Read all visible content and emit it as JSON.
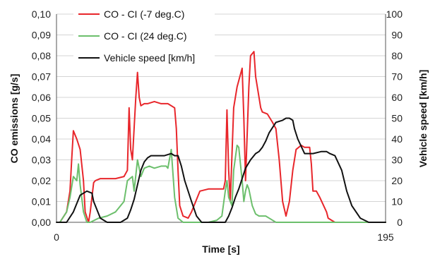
{
  "chart_data": {
    "type": "line",
    "xlabel": "Time [s]",
    "ylabel_left": "CO emissions [g/s]",
    "ylabel_right": "Vehicle speed [km/h]",
    "xlim": [
      0,
      195
    ],
    "x_ticks": [
      "0",
      "195"
    ],
    "ylim_left": [
      0,
      0.1
    ],
    "ylim_right": [
      0,
      100
    ],
    "y_ticks_left": [
      "0,00",
      "0,01",
      "0,02",
      "0,03",
      "0,04",
      "0,05",
      "0,06",
      "0,07",
      "0,08",
      "0,09",
      "0,10"
    ],
    "y_ticks_right": [
      "0",
      "10",
      "20",
      "30",
      "40",
      "50",
      "60",
      "70",
      "80",
      "90",
      "100"
    ],
    "grid": true,
    "legend_position": "top-left",
    "series": [
      {
        "name": "CO - CI (-7 deg.C)",
        "axis": "left",
        "color": "#e8262b",
        "x": [
          2,
          6,
          8,
          9,
          10,
          12,
          14,
          16,
          17,
          19,
          20,
          22,
          23,
          26,
          30,
          35,
          40,
          42,
          43,
          44,
          45,
          47,
          48,
          49,
          50,
          52,
          54,
          58,
          62,
          66,
          70,
          71,
          72,
          73,
          75,
          78,
          80,
          85,
          90,
          95,
          99,
          100,
          101,
          102,
          103,
          105,
          107,
          108,
          110,
          111,
          112,
          114,
          115,
          117,
          118,
          120,
          121,
          122,
          125,
          128,
          130,
          132,
          134,
          136,
          138,
          140,
          142,
          145,
          147,
          150,
          151,
          152,
          154,
          156,
          160,
          161,
          163,
          165,
          168,
          170,
          172,
          175,
          178,
          180,
          183,
          186,
          190,
          193,
          195
        ],
        "y": [
          0.0,
          0.005,
          0.015,
          0.03,
          0.044,
          0.04,
          0.035,
          0.02,
          0.005,
          0.0,
          0.005,
          0.019,
          0.02,
          0.021,
          0.021,
          0.021,
          0.022,
          0.025,
          0.055,
          0.035,
          0.03,
          0.06,
          0.072,
          0.06,
          0.056,
          0.057,
          0.057,
          0.058,
          0.057,
          0.057,
          0.055,
          0.045,
          0.025,
          0.008,
          0.003,
          0.002,
          0.005,
          0.015,
          0.016,
          0.016,
          0.016,
          0.02,
          0.054,
          0.025,
          0.01,
          0.055,
          0.065,
          0.068,
          0.074,
          0.05,
          0.02,
          0.065,
          0.08,
          0.082,
          0.07,
          0.06,
          0.055,
          0.053,
          0.052,
          0.048,
          0.045,
          0.03,
          0.01,
          0.003,
          0.01,
          0.025,
          0.035,
          0.037,
          0.036,
          0.036,
          0.028,
          0.015,
          0.015,
          0.012,
          0.005,
          0.002,
          0.001,
          0.0,
          0.0,
          0.0,
          0.0,
          0.0,
          0.0,
          0.0,
          0.0,
          0.0,
          0.0,
          0.0,
          0.0
        ]
      },
      {
        "name": "CO - CI (24 deg.C)",
        "axis": "left",
        "color": "#6cbf6c",
        "x": [
          2,
          6,
          8,
          10,
          12,
          13,
          14,
          16,
          18,
          20,
          25,
          30,
          35,
          40,
          42,
          45,
          46,
          48,
          50,
          52,
          55,
          58,
          62,
          65,
          66,
          68,
          70,
          72,
          75,
          80,
          90,
          95,
          98,
          100,
          101,
          102,
          104,
          105,
          107,
          108,
          110,
          111,
          112,
          113,
          114,
          116,
          118,
          120,
          124,
          130,
          135,
          140,
          150,
          160,
          170,
          180,
          185,
          190,
          195
        ],
        "y": [
          0.0,
          0.005,
          0.012,
          0.022,
          0.02,
          0.028,
          0.018,
          0.005,
          0.0,
          0.0,
          0.002,
          0.003,
          0.005,
          0.01,
          0.02,
          0.022,
          0.015,
          0.03,
          0.022,
          0.026,
          0.027,
          0.026,
          0.027,
          0.027,
          0.026,
          0.035,
          0.012,
          0.002,
          0.0,
          0.0,
          0.0,
          0.001,
          0.003,
          0.015,
          0.02,
          0.012,
          0.008,
          0.025,
          0.037,
          0.036,
          0.02,
          0.01,
          0.015,
          0.018,
          0.016,
          0.008,
          0.004,
          0.003,
          0.003,
          0.0,
          0.0,
          0.0,
          0.0,
          0.0,
          0.0,
          0.0,
          0.0,
          0.0,
          0.0
        ]
      },
      {
        "name": "Vehicle speed [km/h]",
        "axis": "right",
        "color": "#111111",
        "x": [
          0,
          3,
          6,
          10,
          14,
          18,
          21,
          22,
          26,
          30,
          38,
          42,
          44,
          46,
          48,
          50,
          52,
          54,
          56,
          60,
          64,
          68,
          70,
          72,
          74,
          76,
          80,
          83,
          86,
          90,
          95,
          100,
          102,
          104,
          106,
          108,
          110,
          112,
          115,
          118,
          120,
          122,
          124,
          126,
          130,
          134,
          136,
          138,
          140,
          141,
          143,
          147,
          152,
          157,
          160,
          162,
          165,
          169,
          172,
          175,
          180,
          185,
          190,
          195
        ],
        "y": [
          0,
          0,
          0,
          5,
          13,
          15,
          14,
          10,
          2,
          0,
          0,
          2,
          6,
          11,
          18,
          25,
          29,
          31,
          32,
          32,
          32,
          33,
          32,
          32,
          27,
          20,
          10,
          3,
          0,
          0,
          0,
          0,
          3,
          7,
          12,
          16,
          21,
          26,
          30,
          33,
          34,
          36,
          39,
          43,
          48,
          49,
          50,
          50,
          49,
          45,
          40,
          33,
          33,
          34,
          34,
          33,
          32,
          25,
          15,
          8,
          2,
          0,
          0,
          0
        ]
      }
    ]
  }
}
